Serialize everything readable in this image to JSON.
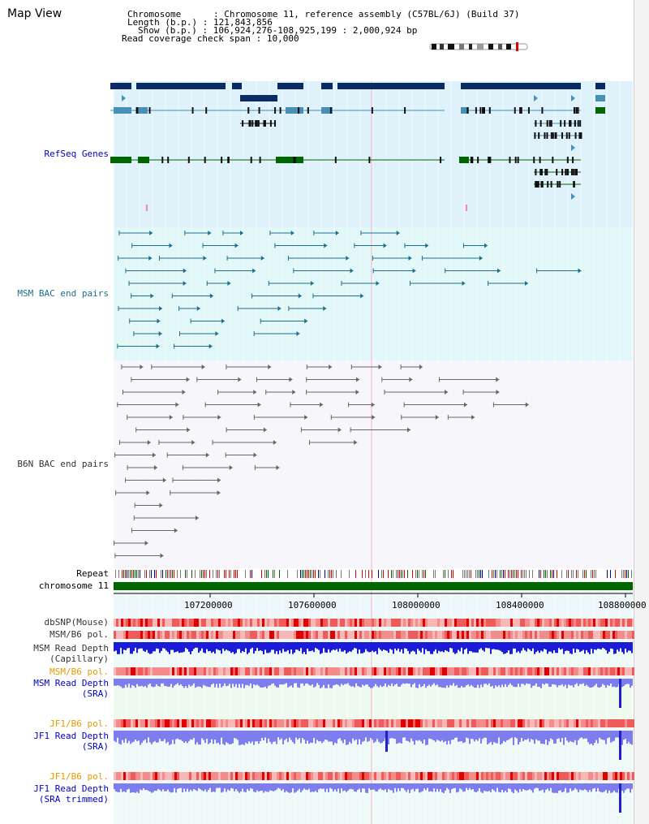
{
  "window": {
    "title": "Map View"
  },
  "header": {
    "chromosome_label": "Chromosome",
    "chromosome_value": "Chromosome 11, reference assembly (C57BL/6J) (Build 37)",
    "length_label": "Length (b.p.)",
    "length_value": "121,843,856",
    "show_label": "Show (b.p.)",
    "show_value": "106,924,276-108,925,199 : 2,000,924 bp",
    "coverage_label": "Read coverage check span",
    "coverage_value": "10,000"
  },
  "tracks": {
    "refseq": "RefSeq Genes",
    "msm_bac": "MSM BAC end pairs",
    "b6n_bac": "B6N BAC end pairs",
    "repeat": "Repeat",
    "chromosome": "chromosome 11",
    "dbsnp": "dbSNP(Mouse)",
    "msm_b6_pol_1": "MSM/B6 pol.",
    "msm_read_depth_cap_1": "MSM Read Depth",
    "msm_read_depth_cap_2": "(Capillary)",
    "msm_b6_pol_2": "MSM/B6 pol.",
    "msm_read_depth_sra_1": "MSM Read Depth",
    "msm_read_depth_sra_2": "(SRA)",
    "jf1_b6_pol_1": "JF1/B6 pol.",
    "jf1_read_depth_sra_1": "JF1 Read Depth",
    "jf1_read_depth_sra_2": "(SRA)",
    "jf1_b6_pol_2": "JF1/B6 pol.",
    "jf1_read_depth_trim_1": "JF1 Read Depth",
    "jf1_read_depth_trim_2": "(SRA trimmed)"
  },
  "axis": {
    "ticks": [
      "107200000",
      "107600000",
      "108000000",
      "108400000",
      "108800000"
    ]
  },
  "colors": {
    "refseq_bg": "#dff1fa",
    "bac_bg": "#e2f8f8",
    "b6n_bg": "#f6f6fb",
    "gene_dark": "#0b2b63",
    "gene_mid": "#4a90b6",
    "gene_green": "#006600",
    "msm_line": "#1e6e8e",
    "b6n_line": "#666666",
    "depth_blue": "#1c1cd6",
    "depth_light": "#7d7dee",
    "pol_red": "#e83a3a"
  }
}
